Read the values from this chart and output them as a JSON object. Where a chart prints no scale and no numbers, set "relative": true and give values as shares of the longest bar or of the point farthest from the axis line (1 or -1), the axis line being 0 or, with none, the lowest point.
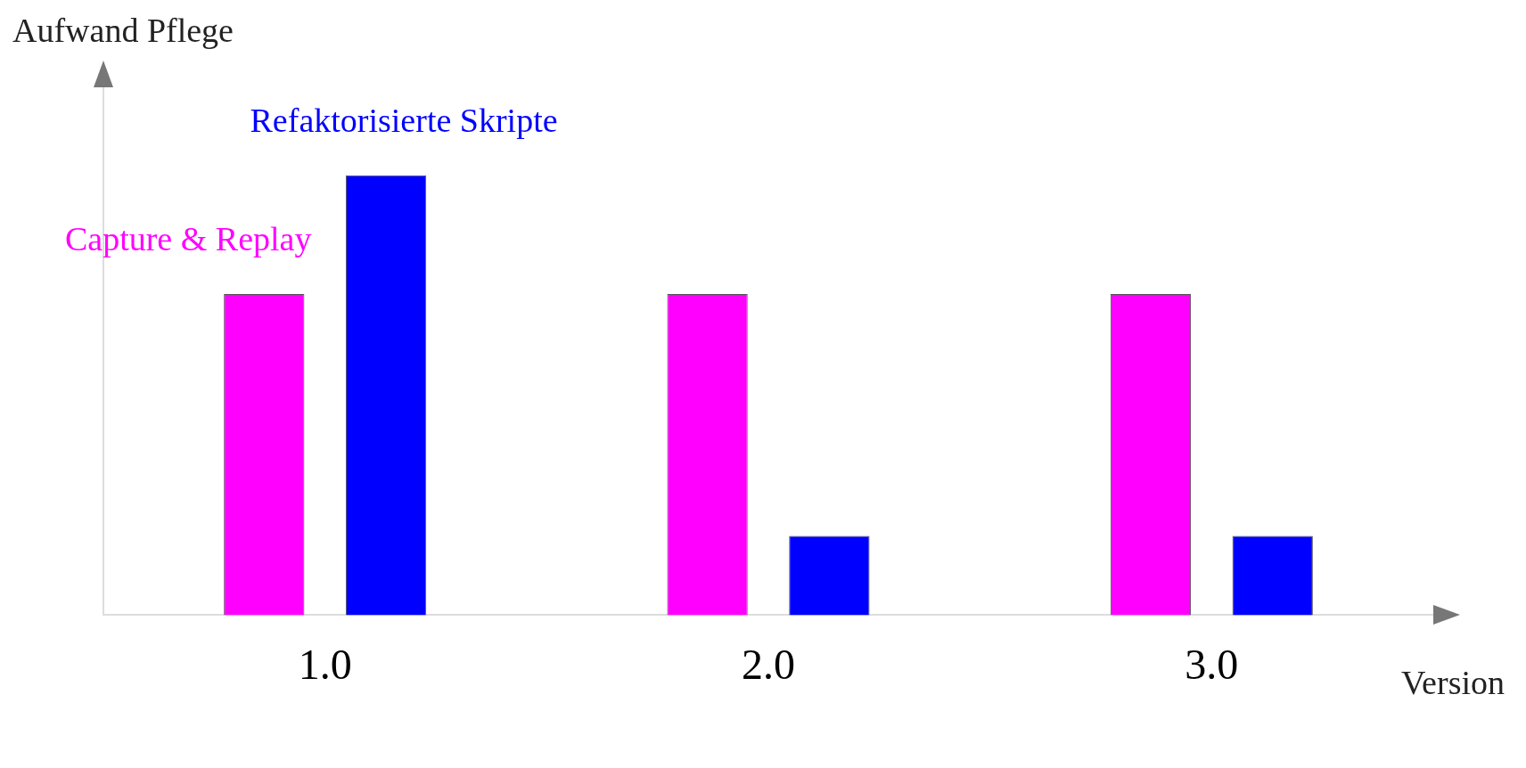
{
  "chart_data": {
    "type": "bar",
    "relative": true,
    "ylabel": "Aufwand Pflege",
    "xlabel": "Version",
    "categories": [
      "1.0",
      "2.0",
      "3.0"
    ],
    "grid": false,
    "legend": false,
    "series": [
      {
        "name": "Capture & Replay",
        "color": "#ff00ff",
        "values": [
          0.73,
          0.73,
          0.73
        ]
      },
      {
        "name": "Refaktorisierte Skripte",
        "color": "#0000ff",
        "values": [
          1,
          0.18,
          0.18
        ]
      }
    ]
  }
}
